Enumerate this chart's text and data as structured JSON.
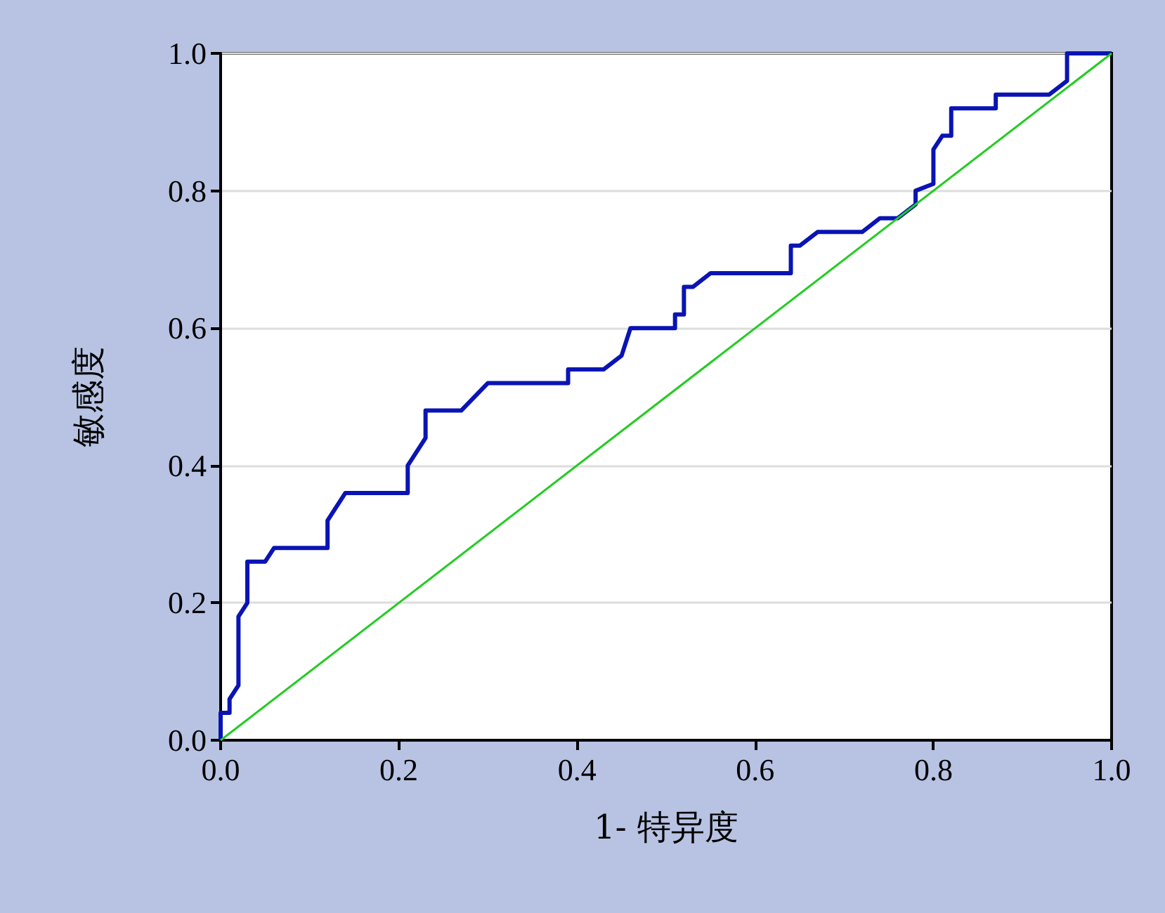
{
  "chart_data": {
    "type": "line",
    "xlabel": "1- 特异度",
    "ylabel": "敏感度",
    "xlim": [
      0,
      1
    ],
    "ylim": [
      0,
      1
    ],
    "xticks": [
      {
        "value": 0,
        "label": "0.0"
      },
      0.2,
      0.4,
      0.6,
      0.8,
      {
        "value": 1,
        "label": "1.0"
      }
    ],
    "yticks": [
      {
        "value": 0,
        "label": "0.0"
      },
      0.2,
      0.4,
      0.6,
      0.8,
      {
        "value": 1,
        "label": "1.0"
      }
    ],
    "grid": "y",
    "marker": "none",
    "line_style": "solid",
    "series": [
      {
        "color": "#0a14b4",
        "x": [
          0,
          0,
          0.01,
          0.01,
          0.02,
          0.02,
          0.03,
          0.03,
          0.05,
          0.06,
          0.12,
          0.12,
          0.14,
          0.21,
          0.21,
          0.23,
          0.23,
          0.27,
          0.3,
          0.39,
          0.39,
          0.43,
          0.45,
          0.46,
          0.51,
          0.51,
          0.52,
          0.52,
          0.53,
          0.55,
          0.64,
          0.64,
          0.65,
          0.67,
          0.72,
          0.74,
          0.76,
          0.78,
          0.78,
          0.8,
          0.8,
          0.81,
          0.82,
          0.82,
          0.87,
          0.87,
          0.93,
          0.95,
          0.95,
          1
        ],
        "values": [
          0,
          0.04,
          0.04,
          0.06,
          0.08,
          0.18,
          0.2,
          0.26,
          0.26,
          0.28,
          0.28,
          0.32,
          0.36,
          0.36,
          0.4,
          0.44,
          0.48,
          0.48,
          0.52,
          0.52,
          0.54,
          0.54,
          0.56,
          0.6,
          0.6,
          0.62,
          0.62,
          0.66,
          0.66,
          0.68,
          0.68,
          0.72,
          0.72,
          0.74,
          0.74,
          0.76,
          0.76,
          0.78,
          0.8,
          0.81,
          0.86,
          0.88,
          0.88,
          0.92,
          0.92,
          0.94,
          0.94,
          0.96,
          1,
          1
        ]
      },
      {
        "color": "#22cc22",
        "x": [
          0,
          1
        ],
        "values": [
          0,
          1
        ]
      }
    ]
  }
}
